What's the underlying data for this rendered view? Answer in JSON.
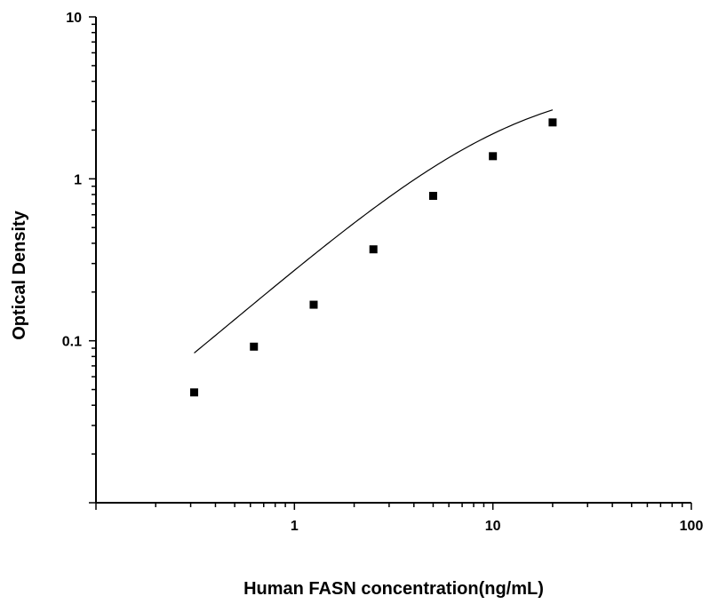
{
  "chart_data": {
    "type": "scatter",
    "title": "",
    "xlabel": "Human FASN concentration(ng/mL)",
    "ylabel": "Optical Density",
    "xscale": "log",
    "yscale": "log",
    "xlim": [
      0.1,
      100
    ],
    "ylim": [
      0.01,
      10
    ],
    "grid": false,
    "x_ticks": [
      {
        "value": 1,
        "label": "1"
      },
      {
        "value": 10,
        "label": "10"
      },
      {
        "value": 100,
        "label": "100"
      }
    ],
    "y_ticks": [
      {
        "value": 0.1,
        "label": "0.1"
      },
      {
        "value": 1,
        "label": "1"
      },
      {
        "value": 10,
        "label": "10"
      }
    ],
    "series": [
      {
        "marker": "square",
        "x": [
          0.3125,
          0.625,
          1.25,
          2.5,
          5,
          10,
          20
        ],
        "y": [
          0.048,
          0.092,
          0.167,
          0.367,
          0.785,
          1.38,
          2.23
        ]
      }
    ],
    "fit_curve": {
      "type": "four-parameter logistic",
      "x_range": [
        0.3125,
        20
      ]
    }
  }
}
